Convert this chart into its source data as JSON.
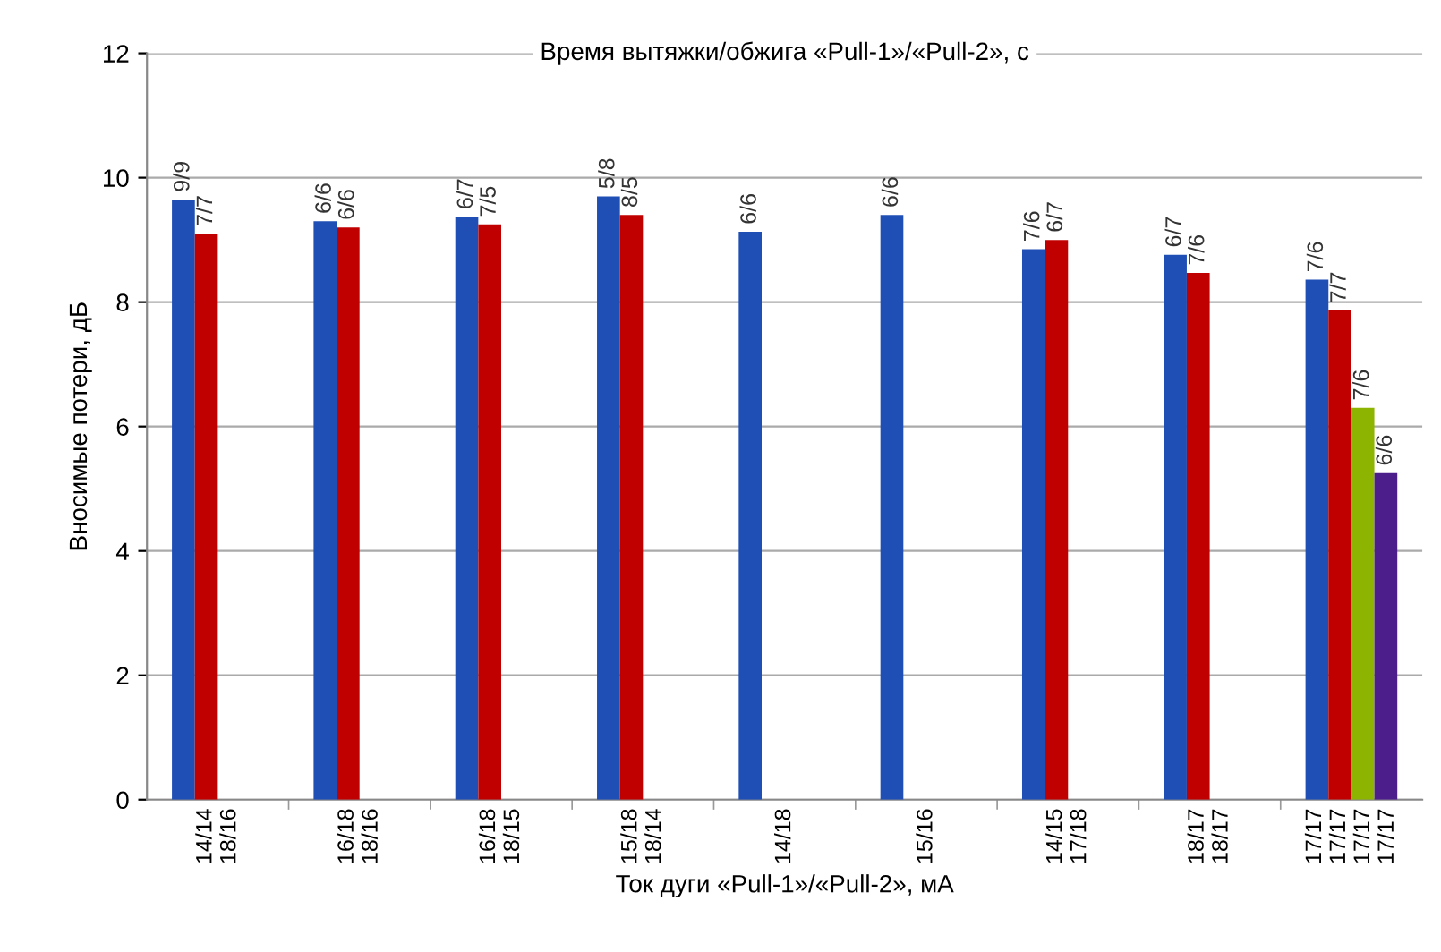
{
  "chart_data": {
    "type": "bar",
    "title": "Время вытяжки/обжига «Pull-1»/«Pull-2», с",
    "xlabel": "Ток дуги «Pull-1»/«Pull-2», мА",
    "ylabel": "Вносимые потери, дБ",
    "categories": [
      "14/14\n18/16",
      "16/18\n18/16",
      "16/18\n18/15",
      "15/18\n18/14",
      "14/18",
      "15/16",
      "14/15\n17/18",
      "18/17\n18/17",
      "17/17\n17/17\n17/17\n17/17"
    ],
    "series": [
      {
        "color": "#1f4fb4",
        "values": [
          9.65,
          9.3,
          9.37,
          9.7,
          9.13,
          9.4,
          8.85,
          8.76,
          8.36
        ]
      },
      {
        "color": "#c00000",
        "values": [
          9.1,
          9.2,
          9.25,
          9.4,
          null,
          null,
          9.0,
          8.47,
          7.87
        ]
      },
      {
        "color": "#8cb400",
        "values": [
          null,
          null,
          null,
          null,
          null,
          null,
          null,
          null,
          6.3
        ]
      },
      {
        "color": "#4b1e8c",
        "values": [
          null,
          null,
          null,
          null,
          null,
          null,
          null,
          null,
          5.25
        ]
      }
    ],
    "annotations": [
      "9/9",
      "7/7",
      "6/6",
      "6/6",
      "6/7",
      "7/5",
      "5/8",
      "8/5",
      "6/6",
      "6/6",
      "7/6",
      "6/7",
      "6/7",
      "7/6",
      "7/6",
      "7/7",
      "7/6",
      "6/6"
    ],
    "ylim": [
      0,
      12
    ],
    "yticks": [
      0,
      2,
      4,
      6,
      8,
      10,
      12
    ],
    "grid": "y",
    "legend": false
  }
}
